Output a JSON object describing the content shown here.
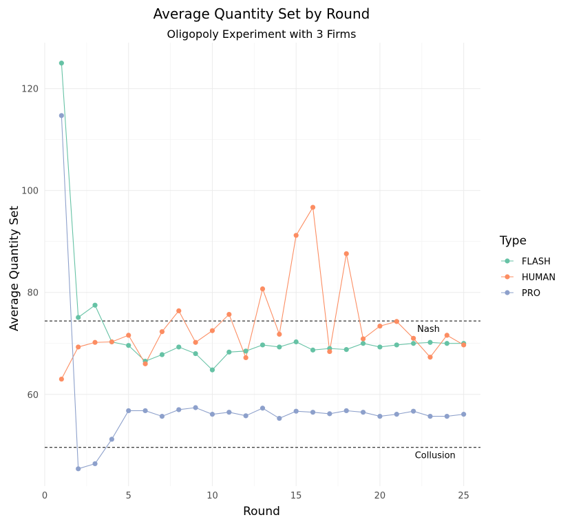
{
  "chart_data": {
    "type": "line",
    "title": "Average Quantity Set by Round",
    "subtitle": "Oligopoly Experiment with 3 Firms",
    "xlabel": "Round",
    "ylabel": "Average Quantity Set",
    "xlim": [
      0,
      26
    ],
    "ylim": [
      42,
      129
    ],
    "xticks": [
      0,
      5,
      10,
      15,
      20,
      25
    ],
    "yticks": [
      60,
      80,
      100,
      120
    ],
    "grid": true,
    "legend": {
      "title": "Type",
      "position": "right"
    },
    "x": [
      1,
      2,
      3,
      4,
      5,
      6,
      7,
      8,
      9,
      10,
      11,
      12,
      13,
      14,
      15,
      16,
      17,
      18,
      19,
      20,
      21,
      22,
      23,
      24,
      25
    ],
    "series": [
      {
        "name": "FLASH",
        "color": "#66c2a5",
        "values": [
          125,
          75.1,
          77.5,
          70.3,
          69.6,
          66.5,
          67.8,
          69.3,
          68,
          64.8,
          68.3,
          68.5,
          69.7,
          69.3,
          70.3,
          68.7,
          69,
          68.8,
          70,
          69.3,
          69.7,
          70,
          70.2,
          70,
          70
        ]
      },
      {
        "name": "HUMAN",
        "color": "#fc8d62",
        "values": [
          63,
          69.3,
          70.2,
          70.3,
          71.6,
          66,
          72.3,
          76.4,
          70.2,
          72.5,
          75.7,
          67.2,
          80.7,
          71.8,
          91.2,
          96.7,
          68.4,
          87.6,
          70.9,
          73.4,
          74.3,
          71,
          67.3,
          71.6,
          69.7
        ]
      },
      {
        "name": "PRO",
        "color": "#8da0cb",
        "values": [
          114.7,
          45.4,
          46.4,
          51.2,
          56.8,
          56.8,
          55.7,
          57,
          57.4,
          56.1,
          56.5,
          55.8,
          57.3,
          55.3,
          56.7,
          56.5,
          56.2,
          56.8,
          56.5,
          55.7,
          56.1,
          56.7,
          55.7,
          55.7,
          56.1
        ]
      }
    ],
    "reference_lines": [
      {
        "label": "Nash",
        "y": 74.4
      },
      {
        "label": "Collusion",
        "y": 49.6
      }
    ]
  }
}
